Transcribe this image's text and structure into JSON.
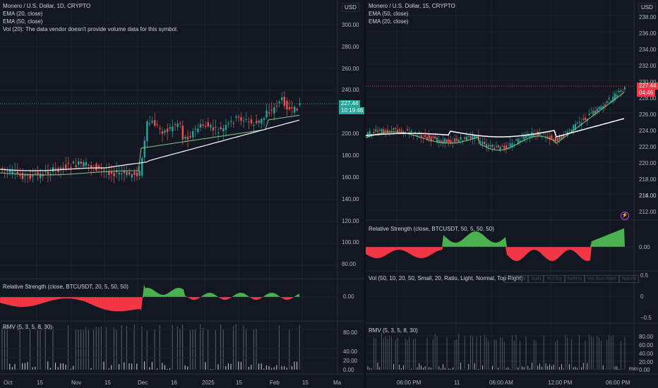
{
  "left": {
    "title": "Monero / U.S. Dollar, 1D, CRYPTO",
    "ema1": "EMA (20, close)",
    "ema2": "EMA (50, close)",
    "vol": "Vol (20): The data vendor doesn't provide volume data for this symbol.",
    "currency": "USD",
    "price_tag": "227.44",
    "countdown": "10:19:46",
    "price_axis": [
      "300.00",
      "280.00",
      "260.00",
      "240.00",
      "200.00",
      "180.00",
      "160.00",
      "140.00",
      "120.00",
      "100.00",
      "80.00"
    ],
    "rs_label": "Relative Strength (close, BTCUSDT, 20, 5, 50, 50)",
    "rs_axis": [
      "0.00"
    ],
    "rmv_label": "RMV (5, 3, 5, 8, 30)",
    "rmv_axis": [
      "80.00",
      "40.00",
      "20.00",
      "0.00"
    ],
    "time_axis": [
      "Oct",
      "15",
      "Nov",
      "15",
      "Dec",
      "16",
      "2025",
      "15",
      "Feb",
      "15",
      "Ma"
    ]
  },
  "right": {
    "title": "Monero / U.S. Dollar, 15, CRYPTO",
    "ema1": "EMA (50, close)",
    "ema2": "EMA (20, close)",
    "currency": "USD",
    "price_tag": "227.44",
    "countdown": "04:46",
    "price_axis": [
      "238.00",
      "236.00",
      "234.00",
      "232.00",
      "230.00",
      "228.00",
      "226.00",
      "224.00",
      "222.00",
      "220.00",
      "218.00",
      "216.00",
      "214.00",
      "212.00"
    ],
    "rs_label": "Relative Strength (close, BTCUSDT, 50, 5, 50, 50)",
    "rs_axis": [
      "0.00"
    ],
    "vol_label": "Vol (50, 10, 20, 50, Small, 20, Ratio, Light, Normal, Top Right)",
    "vol_table": [
      "USD Vol",
      "NaN",
      "% Chg",
      "NaN%",
      "Vol Run Rate",
      "NaN%"
    ],
    "vol_axis": [
      "0.5",
      "0",
      "−0.5"
    ],
    "rmv_label": "RMV (5, 3, 5, 8, 30)",
    "rmv_axis": [
      "80.00",
      "60.00",
      "40.00",
      "20.00",
      "0.00"
    ],
    "rmv_tag": "RMV",
    "time_axis": [
      "06:00 PM",
      "11",
      "06:00 AM",
      "12:00 PM",
      "06:00 PM"
    ]
  },
  "colors": {
    "up": "#26a69a",
    "down": "#ef5350",
    "rs_up": "#4caf50",
    "rs_down": "#f23645",
    "ema_white": "#ffffff",
    "ema_green": "#81c784"
  }
}
